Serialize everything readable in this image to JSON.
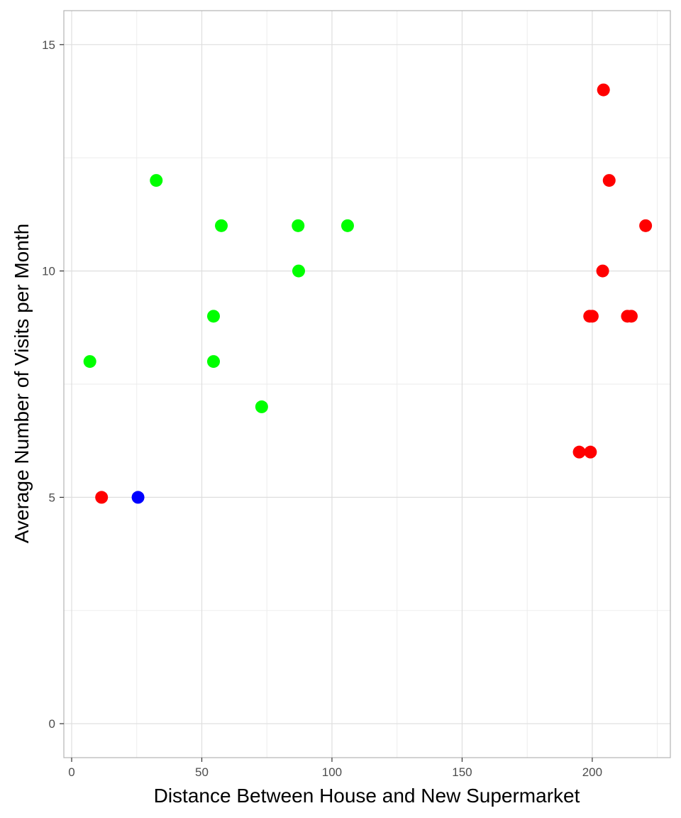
{
  "chart_data": {
    "type": "scatter",
    "title": "",
    "xlabel": "Distance Between House and New Supermarket",
    "ylabel": "Average Number of Visits per Month",
    "xlim": [
      -3,
      230
    ],
    "ylim": [
      -0.75,
      15.75
    ],
    "x_ticks": [
      0,
      50,
      100,
      150,
      200
    ],
    "y_ticks": [
      0,
      5,
      10,
      15
    ],
    "grid": true,
    "legend": "none",
    "colors": {
      "green": "#00ff00",
      "red": "#ff0000",
      "blue": "#0000ff"
    },
    "points": [
      {
        "x": 7,
        "y": 8,
        "color": "green"
      },
      {
        "x": 32.5,
        "y": 12,
        "color": "green"
      },
      {
        "x": 54.5,
        "y": 9,
        "color": "green"
      },
      {
        "x": 54.5,
        "y": 8,
        "color": "green"
      },
      {
        "x": 57.5,
        "y": 11,
        "color": "green"
      },
      {
        "x": 73,
        "y": 7,
        "color": "green"
      },
      {
        "x": 87,
        "y": 11,
        "color": "green"
      },
      {
        "x": 87.2,
        "y": 10,
        "color": "green"
      },
      {
        "x": 106,
        "y": 11,
        "color": "green"
      },
      {
        "x": 11.5,
        "y": 5,
        "color": "red"
      },
      {
        "x": 25.5,
        "y": 5,
        "color": "blue"
      },
      {
        "x": 195,
        "y": 6,
        "color": "red"
      },
      {
        "x": 199.3,
        "y": 6,
        "color": "red"
      },
      {
        "x": 199,
        "y": 9,
        "color": "red"
      },
      {
        "x": 200,
        "y": 9,
        "color": "red"
      },
      {
        "x": 204,
        "y": 10,
        "color": "red"
      },
      {
        "x": 204.3,
        "y": 14,
        "color": "red"
      },
      {
        "x": 206.5,
        "y": 12,
        "color": "red"
      },
      {
        "x": 213.5,
        "y": 9,
        "color": "red"
      },
      {
        "x": 215,
        "y": 9,
        "color": "red"
      },
      {
        "x": 220.5,
        "y": 11,
        "color": "red"
      }
    ]
  }
}
